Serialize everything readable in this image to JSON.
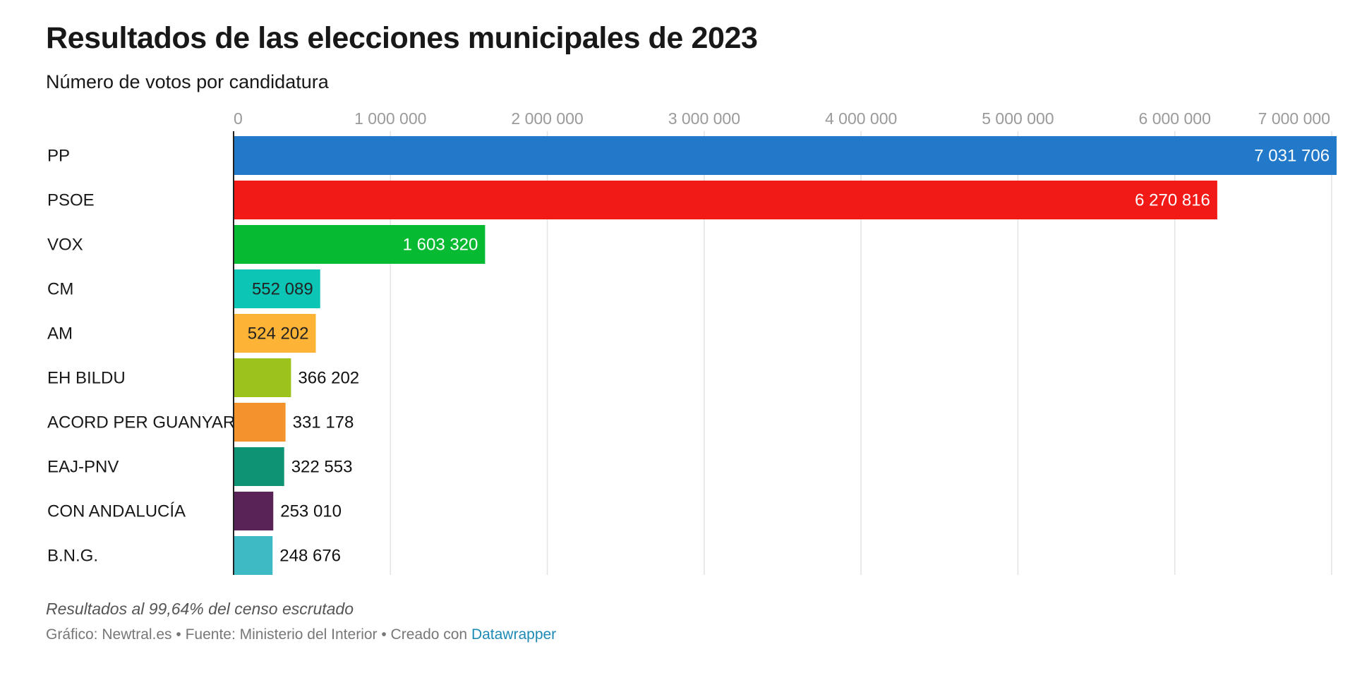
{
  "header": {
    "title": "Resultados de las elecciones municipales de 2023",
    "subtitle": "Número de votos por candidatura"
  },
  "footer": {
    "note": "Resultados al 99,64% del censo escrutado",
    "credits_prefix": "Gráfico: Newtral.es • Fuente: Ministerio del Interior • Creado con ",
    "credits_link": "Datawrapper"
  },
  "chart_data": {
    "type": "bar",
    "orientation": "horizontal",
    "title": "Resultados de las elecciones municipales de 2023",
    "subtitle": "Número de votos por candidatura",
    "xlabel": "",
    "ylabel": "",
    "xlim": [
      0,
      7000000
    ],
    "grid": true,
    "axis_position": "top",
    "ticks": [
      {
        "value": 0,
        "label": "0"
      },
      {
        "value": 1000000,
        "label": "1 000 000"
      },
      {
        "value": 2000000,
        "label": "2 000 000"
      },
      {
        "value": 3000000,
        "label": "3 000 000"
      },
      {
        "value": 4000000,
        "label": "4 000 000"
      },
      {
        "value": 5000000,
        "label": "5 000 000"
      },
      {
        "value": 6000000,
        "label": "6 000 000"
      },
      {
        "value": 7000000,
        "label": "7 000 000"
      }
    ],
    "bars": [
      {
        "party": "PP",
        "value": 7031706,
        "label": "7 031 706",
        "color": "#2279c9",
        "label_color": "#ffffff"
      },
      {
        "party": "PSOE",
        "value": 6270816,
        "label": "6 270 816",
        "color": "#f21a17",
        "label_color": "#ffffff"
      },
      {
        "party": "VOX",
        "value": 1603320,
        "label": "1 603 320",
        "color": "#06bb32",
        "label_color": "#ffffff"
      },
      {
        "party": "CM",
        "value": 552089,
        "label": "552 089",
        "color": "#0cc5b5",
        "label_color": "#222222"
      },
      {
        "party": "AM",
        "value": 524202,
        "label": "524 202",
        "color": "#fdb335",
        "label_color": "#222222"
      },
      {
        "party": "EH BILDU",
        "value": 366202,
        "label": "366 202",
        "color": "#9bc31b",
        "label_color": "#111111"
      },
      {
        "party": "ACORD PER GUANYAR",
        "value": 331178,
        "label": "331 178",
        "color": "#f4932b",
        "label_color": "#111111"
      },
      {
        "party": "EAJ-PNV",
        "value": 322553,
        "label": "322 553",
        "color": "#0e9474",
        "label_color": "#111111"
      },
      {
        "party": "CON ANDALUCÍA",
        "value": 253010,
        "label": "253 010",
        "color": "#5a2358",
        "label_color": "#111111"
      },
      {
        "party": "B.N.G.",
        "value": 248676,
        "label": "248 676",
        "color": "#3ebac5",
        "label_color": "#111111"
      }
    ]
  }
}
